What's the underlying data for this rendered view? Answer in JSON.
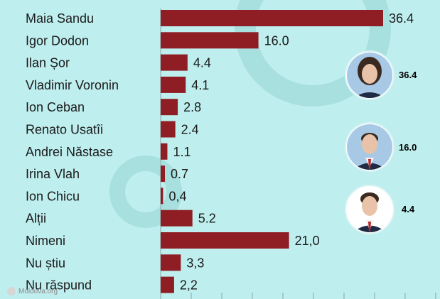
{
  "chart_data": {
    "type": "bar",
    "orientation": "horizontal",
    "categories": [
      "Maia Sandu",
      "Igor Dodon",
      "Ilan Șor",
      "Vladimir Voronin",
      "Ion Ceban",
      "Renato Usatîi",
      "Andrei Năstase",
      "Irina Vlah",
      "Ion Chicu",
      "Alții",
      "Nimeni",
      "Nu știu",
      "Nu răspund"
    ],
    "values": [
      36.4,
      16.0,
      4.4,
      4.1,
      2.8,
      2.4,
      1.1,
      0.7,
      0.4,
      5.2,
      21.0,
      3.3,
      2.2
    ],
    "value_labels": [
      "36.4",
      "16.0",
      "4.4",
      "4.1",
      "2.8",
      "2.4",
      "1.1",
      "0.7",
      "0,4",
      "5.2",
      "21,0",
      "3,3",
      "2,2"
    ],
    "title": "",
    "xlabel": "",
    "ylabel": "",
    "xlim": [
      0,
      45
    ],
    "grid": true,
    "bar_color": "#8f1d24"
  },
  "portraits": [
    {
      "name": "maia-sandu",
      "value": "36.4"
    },
    {
      "name": "igor-dodon",
      "value": "16.0"
    },
    {
      "name": "ilan-sor",
      "value": "4.4"
    }
  ],
  "watermark": "Moldova.org",
  "colors": {
    "background": "#bfeeee"
  }
}
